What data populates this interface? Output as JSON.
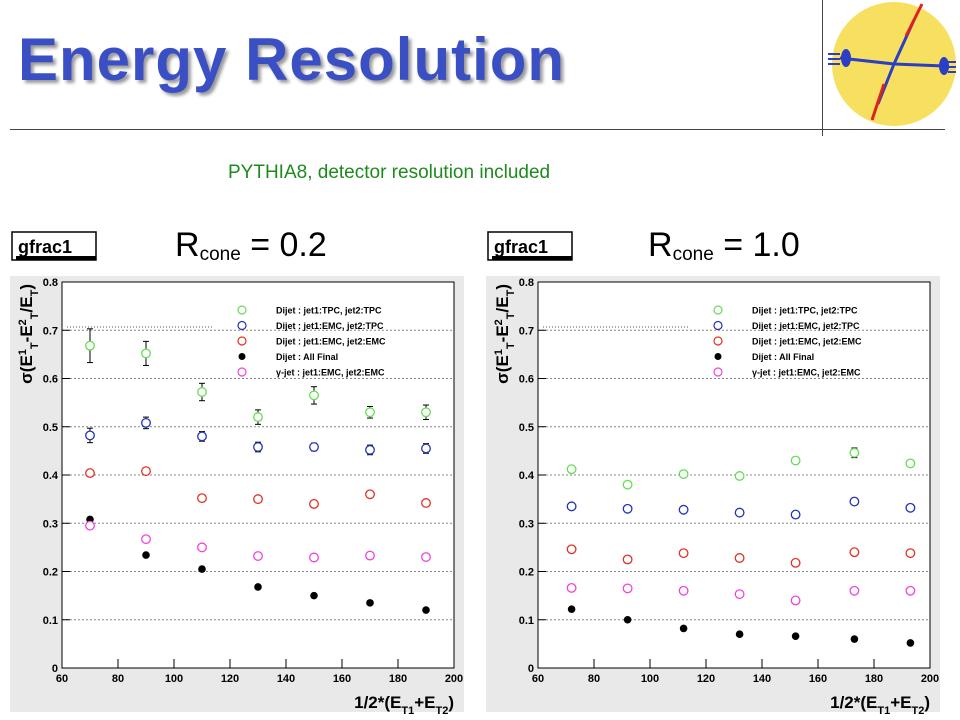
{
  "slide": {
    "title": "Energy Resolution",
    "subtitle": "PYTHIA8, detector resolution included"
  },
  "panels": [
    {
      "label_main": "R",
      "label_sub": "cone",
      "label_value": " = 0.2"
    },
    {
      "label_main": "R",
      "label_sub": "cone",
      "label_value": " = 1.0"
    }
  ],
  "colors": {
    "title": "#3a4fc4",
    "subtitle": "#1d8a1d",
    "frame_bg": "#e9e9e9",
    "series_tpc_tpc": "#66dd55",
    "series_emc_tpc": "#2233bb",
    "series_emc_emc": "#dd3322",
    "series_all_final": "#000000",
    "series_gamma_jet": "#ee44dd",
    "logo_circle": "#f7e060",
    "logo_beam": "#2a3fc4",
    "logo_arrow": "#dd2222"
  },
  "chart_data": [
    {
      "type": "scatter",
      "stats_box": "gfrac1",
      "xlabel": "1/2*(E_T1+E_T2)",
      "ylabel": "σ(E^1_T-E^2_T/E_T)",
      "xlim": [
        60,
        200
      ],
      "ylim": [
        0,
        0.8
      ],
      "x_ticks": [
        "60",
        "80",
        "100",
        "120",
        "140",
        "160",
        "180",
        "200"
      ],
      "y_ticks": [
        "0",
        "0.1",
        "0.2",
        "0.3",
        "0.4",
        "0.5",
        "0.6",
        "0.7",
        "0.8"
      ],
      "grid": "horizontal dashed",
      "legend": "top-right",
      "x": [
        70,
        90,
        110,
        130,
        150,
        170,
        190
      ],
      "series": [
        {
          "name": "Dijet : jet1:TPC, jet2:TPC",
          "color": "#66dd55",
          "marker": "open-circle",
          "values": [
            0.668,
            0.652,
            0.572,
            0.52,
            0.565,
            0.53,
            0.53
          ],
          "errors": [
            0.035,
            0.025,
            0.018,
            0.015,
            0.018,
            0.012,
            0.015
          ]
        },
        {
          "name": "Dijet : jet1:EMC, jet2:TPC",
          "color": "#2233bb",
          "marker": "open-circle",
          "values": [
            0.482,
            0.508,
            0.48,
            0.458,
            0.458,
            0.452,
            0.455
          ],
          "errors": [
            0.015,
            0.012,
            0.01,
            0.01,
            0.008,
            0.01,
            0.01
          ]
        },
        {
          "name": "Dijet : jet1:EMC, jet2:EMC",
          "color": "#dd3322",
          "marker": "open-circle",
          "values": [
            0.404,
            0.408,
            0.352,
            0.35,
            0.34,
            0.36,
            0.342
          ],
          "errors": [
            0.004,
            0.004,
            0.004,
            0.004,
            0.004,
            0.004,
            0.004
          ]
        },
        {
          "name": "Dijet : All Final",
          "color": "#000000",
          "marker": "filled-circle",
          "values": [
            0.308,
            0.234,
            0.205,
            0.168,
            0.15,
            0.135,
            0.12
          ],
          "errors": [
            0,
            0,
            0,
            0,
            0,
            0,
            0
          ]
        },
        {
          "name": "γ-jet : jet1:EMC, jet2:EMC",
          "color": "#ee44dd",
          "marker": "open-circle",
          "values": [
            0.295,
            0.267,
            0.25,
            0.232,
            0.229,
            0.233,
            0.23
          ],
          "errors": [
            0,
            0,
            0,
            0,
            0,
            0,
            0
          ]
        }
      ]
    },
    {
      "type": "scatter",
      "stats_box": "gfrac1",
      "xlabel": "1/2*(E_T1+E_T2)",
      "ylabel": "σ(E^1_T-E^2_T/E_T)",
      "xlim": [
        60,
        200
      ],
      "ylim": [
        0,
        0.8
      ],
      "x_ticks": [
        "60",
        "80",
        "100",
        "120",
        "140",
        "160",
        "180",
        "200"
      ],
      "y_ticks": [
        "0",
        "0.1",
        "0.2",
        "0.3",
        "0.4",
        "0.5",
        "0.6",
        "0.7",
        "0.8"
      ],
      "grid": "horizontal dashed",
      "legend": "top-right",
      "x": [
        72,
        92,
        112,
        132,
        152,
        173,
        193
      ],
      "series": [
        {
          "name": "Dijet : jet1:TPC, jet2:TPC",
          "color": "#66dd55",
          "marker": "open-circle",
          "values": [
            0.412,
            0.38,
            0.402,
            0.398,
            0.43,
            0.446,
            0.424
          ],
          "errors": [
            0.004,
            0.004,
            0.004,
            0.004,
            0.004,
            0.01,
            0.004
          ]
        },
        {
          "name": "Dijet : jet1:EMC, jet2:TPC",
          "color": "#2233bb",
          "marker": "open-circle",
          "values": [
            0.335,
            0.33,
            0.328,
            0.322,
            0.318,
            0.345,
            0.332
          ],
          "errors": [
            0,
            0,
            0,
            0,
            0,
            0,
            0
          ]
        },
        {
          "name": "Dijet : jet1:EMC, jet2:EMC",
          "color": "#dd3322",
          "marker": "open-circle",
          "values": [
            0.246,
            0.225,
            0.238,
            0.228,
            0.218,
            0.24,
            0.238
          ],
          "errors": [
            0,
            0,
            0,
            0,
            0,
            0,
            0
          ]
        },
        {
          "name": "Dijet : All Final",
          "color": "#000000",
          "marker": "filled-circle",
          "values": [
            0.122,
            0.1,
            0.082,
            0.07,
            0.066,
            0.06,
            0.052
          ],
          "errors": [
            0,
            0,
            0,
            0,
            0,
            0,
            0
          ]
        },
        {
          "name": "γ-jet : jet1:EMC, jet2:EMC",
          "color": "#ee44dd",
          "marker": "open-circle",
          "values": [
            0.166,
            0.165,
            0.16,
            0.153,
            0.14,
            0.16,
            0.16
          ],
          "errors": [
            0,
            0,
            0,
            0,
            0,
            0,
            0
          ]
        }
      ]
    }
  ]
}
